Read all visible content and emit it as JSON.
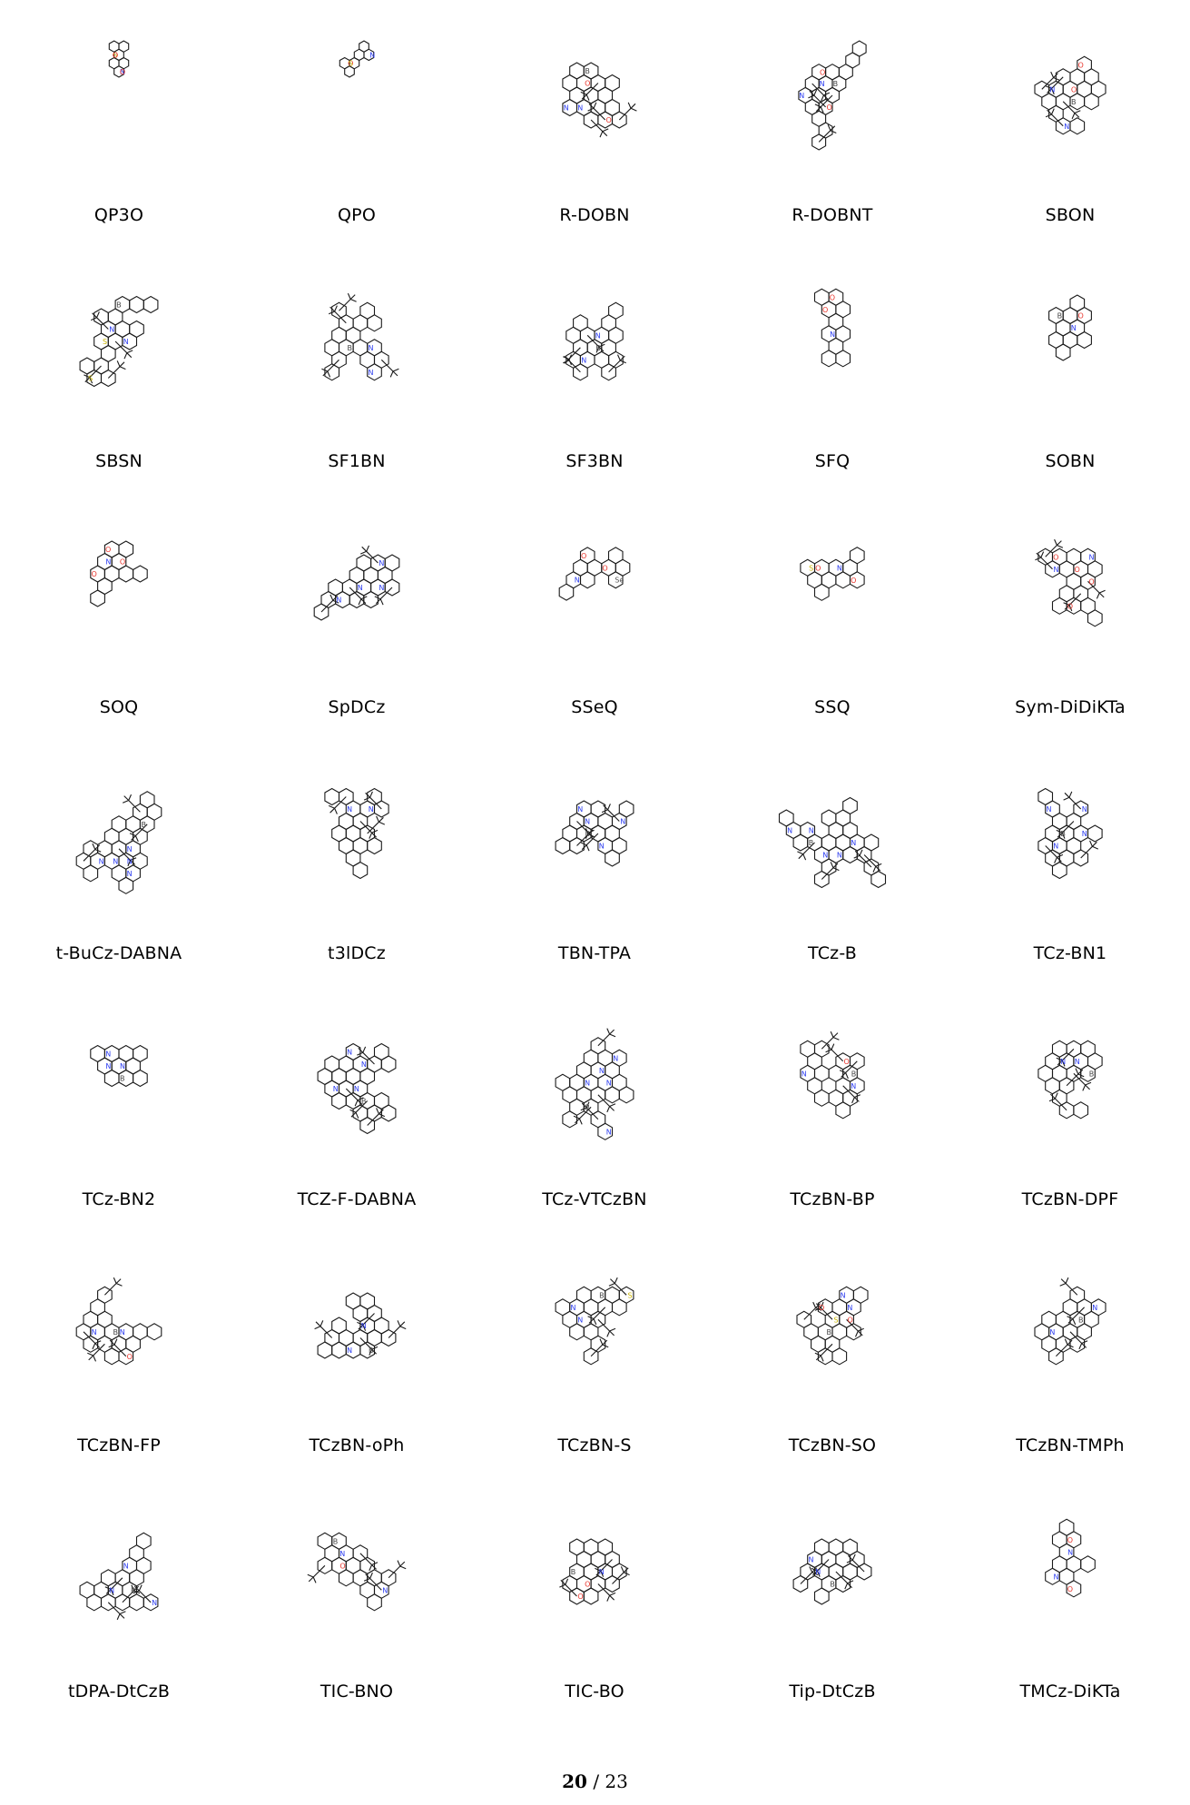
{
  "molecules": [
    {
      "label": "QP3O",
      "atoms": [
        "O",
        "N",
        "S",
        "O",
        "O"
      ],
      "size": "s"
    },
    {
      "label": "QPO",
      "atoms": [
        "O",
        "N",
        "S"
      ],
      "size": "s"
    },
    {
      "label": "R-DOBN",
      "atoms": [
        "N",
        "O",
        "B",
        "O",
        "N"
      ],
      "size": "l"
    },
    {
      "label": "R-DOBNT",
      "atoms": [
        "N",
        "O",
        "B",
        "O",
        "N"
      ],
      "size": "l"
    },
    {
      "label": "SBON",
      "atoms": [
        "N",
        "O",
        "B",
        "N",
        "O"
      ],
      "size": "l"
    },
    {
      "label": "SBSN",
      "atoms": [
        "N",
        "S",
        "B",
        "N",
        "S"
      ],
      "size": "l"
    },
    {
      "label": "SF1BN",
      "atoms": [
        "N",
        "B",
        "N"
      ],
      "size": "l"
    },
    {
      "label": "SF3BN",
      "atoms": [
        "N",
        "B",
        "N"
      ],
      "size": "l"
    },
    {
      "label": "SFQ",
      "atoms": [
        "O",
        "N",
        "O"
      ],
      "size": "m"
    },
    {
      "label": "SOBN",
      "atoms": [
        "N",
        "B",
        "O"
      ],
      "size": "m"
    },
    {
      "label": "SOQ",
      "atoms": [
        "O",
        "N",
        "O",
        "O"
      ],
      "size": "m"
    },
    {
      "label": "SpDCz",
      "atoms": [
        "N",
        "N",
        "N",
        "N"
      ],
      "size": "l"
    },
    {
      "label": "SSeQ",
      "atoms": [
        "O",
        "N",
        "O",
        "Se"
      ],
      "size": "m"
    },
    {
      "label": "SSQ",
      "atoms": [
        "O",
        "N",
        "O",
        "S"
      ],
      "size": "m"
    },
    {
      "label": "Sym-DiDiKTa",
      "atoms": [
        "O",
        "N",
        "O",
        "N",
        "O",
        "O"
      ],
      "size": "l"
    },
    {
      "label": "t-BuCz-DABNA",
      "atoms": [
        "N",
        "N",
        "B",
        "N",
        "N",
        "N"
      ],
      "size": "xl"
    },
    {
      "label": "t3lDCz",
      "atoms": [
        "N",
        "N"
      ],
      "size": "l"
    },
    {
      "label": "TBN-TPA",
      "atoms": [
        "N",
        "B",
        "N",
        "N",
        "N"
      ],
      "size": "l"
    },
    {
      "label": "TCz-B",
      "atoms": [
        "N",
        "N",
        "B",
        "N",
        "N",
        "N"
      ],
      "size": "xl"
    },
    {
      "label": "TCz-BN1",
      "atoms": [
        "N",
        "N",
        "B",
        "N",
        "N"
      ],
      "size": "l"
    },
    {
      "label": "TCz-BN2",
      "atoms": [
        "N",
        "N",
        "B",
        "N"
      ],
      "size": "m"
    },
    {
      "label": "TCZ-F-DABNA",
      "atoms": [
        "N",
        "N",
        "B",
        "N",
        "N"
      ],
      "size": "xl"
    },
    {
      "label": "TCz-VTCzBN",
      "atoms": [
        "N",
        "N",
        "B",
        "N",
        "N",
        "N"
      ],
      "size": "xl"
    },
    {
      "label": "TCzBN-BP",
      "atoms": [
        "N",
        "B",
        "N",
        "O"
      ],
      "size": "l"
    },
    {
      "label": "TCzBN-DPF",
      "atoms": [
        "N",
        "B",
        "N"
      ],
      "size": "l"
    },
    {
      "label": "TCzBN-FP",
      "atoms": [
        "N",
        "B",
        "N",
        "O"
      ],
      "size": "l"
    },
    {
      "label": "TCzBN-oPh",
      "atoms": [
        "N",
        "B",
        "N"
      ],
      "size": "l"
    },
    {
      "label": "TCzBN-S",
      "atoms": [
        "N",
        "B",
        "N",
        "S"
      ],
      "size": "l"
    },
    {
      "label": "TCzBN-SO",
      "atoms": [
        "N",
        "B",
        "N",
        "S",
        "O",
        "O"
      ],
      "size": "l"
    },
    {
      "label": "TCzBN-TMPh",
      "atoms": [
        "N",
        "B",
        "N"
      ],
      "size": "l"
    },
    {
      "label": "tDPA-DtCzB",
      "atoms": [
        "N",
        "B",
        "N",
        "N"
      ],
      "size": "l"
    },
    {
      "label": "TIC-BNO",
      "atoms": [
        "N",
        "O",
        "B",
        "N"
      ],
      "size": "l"
    },
    {
      "label": "TIC-BO",
      "atoms": [
        "N",
        "O",
        "B",
        "O"
      ],
      "size": "l"
    },
    {
      "label": "Tip-DtCzB",
      "atoms": [
        "N",
        "B",
        "N"
      ],
      "size": "l"
    },
    {
      "label": "TMCz-DiKTa",
      "atoms": [
        "O",
        "N",
        "O",
        "N"
      ],
      "size": "m"
    }
  ],
  "page": {
    "current": "20",
    "separator": "/",
    "total": "23"
  },
  "colors": {
    "N": "#2b3cf0",
    "O": "#e8332a",
    "S": "#c9b400",
    "B": "#444444",
    "Se": "#555555",
    "bond": "#1a1a1a"
  }
}
